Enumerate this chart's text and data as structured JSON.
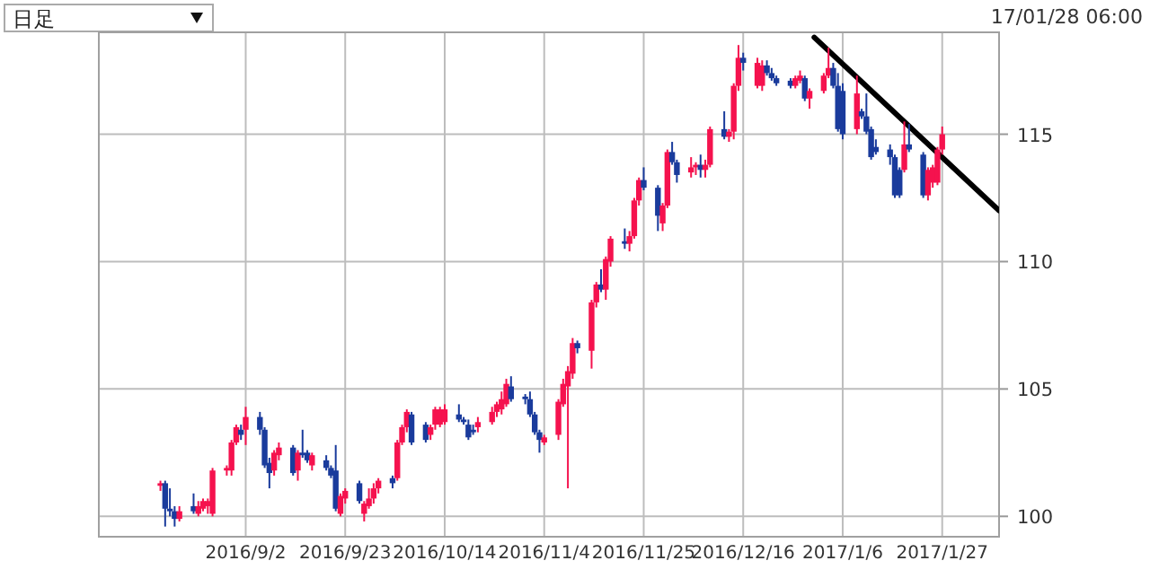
{
  "chart_data": {
    "type": "candlestick",
    "annotations": [
      "日足",
      "17/01/28 06:00"
    ],
    "x": [
      "2016-08-15",
      "2016-08-16",
      "2016-08-17",
      "2016-08-18",
      "2016-08-19",
      "2016-08-22",
      "2016-08-23",
      "2016-08-24",
      "2016-08-25",
      "2016-08-26",
      "2016-08-29",
      "2016-08-30",
      "2016-08-31",
      "2016-09-01",
      "2016-09-02",
      "2016-09-05",
      "2016-09-06",
      "2016-09-07",
      "2016-09-08",
      "2016-09-09",
      "2016-09-12",
      "2016-09-13",
      "2016-09-14",
      "2016-09-15",
      "2016-09-16",
      "2016-09-19",
      "2016-09-20",
      "2016-09-21",
      "2016-09-22",
      "2016-09-23",
      "2016-09-26",
      "2016-09-27",
      "2016-09-28",
      "2016-09-29",
      "2016-09-30",
      "2016-10-03",
      "2016-10-04",
      "2016-10-05",
      "2016-10-06",
      "2016-10-07",
      "2016-10-10",
      "2016-10-11",
      "2016-10-12",
      "2016-10-13",
      "2016-10-14",
      "2016-10-17",
      "2016-10-18",
      "2016-10-19",
      "2016-10-20",
      "2016-10-21",
      "2016-10-24",
      "2016-10-25",
      "2016-10-26",
      "2016-10-27",
      "2016-10-28",
      "2016-10-31",
      "2016-11-01",
      "2016-11-02",
      "2016-11-03",
      "2016-11-04",
      "2016-11-07",
      "2016-11-08",
      "2016-11-09",
      "2016-11-10",
      "2016-11-11",
      "2016-11-14",
      "2016-11-15",
      "2016-11-16",
      "2016-11-17",
      "2016-11-18",
      "2016-11-21",
      "2016-11-22",
      "2016-11-23",
      "2016-11-24",
      "2016-11-25",
      "2016-11-28",
      "2016-11-29",
      "2016-11-30",
      "2016-12-01",
      "2016-12-02",
      "2016-12-05",
      "2016-12-06",
      "2016-12-07",
      "2016-12-08",
      "2016-12-09",
      "2016-12-12",
      "2016-12-13",
      "2016-12-14",
      "2016-12-15",
      "2016-12-16",
      "2016-12-19",
      "2016-12-20",
      "2016-12-21",
      "2016-12-22",
      "2016-12-23",
      "2016-12-26",
      "2016-12-27",
      "2016-12-28",
      "2016-12-29",
      "2016-12-30",
      "2017-01-02",
      "2017-01-03",
      "2017-01-04",
      "2017-01-05",
      "2017-01-06",
      "2017-01-09",
      "2017-01-10",
      "2017-01-11",
      "2017-01-12",
      "2017-01-13",
      "2017-01-16",
      "2017-01-17",
      "2017-01-18",
      "2017-01-19",
      "2017-01-20",
      "2017-01-23",
      "2017-01-24",
      "2017-01-25",
      "2017-01-26",
      "2017-01-27"
    ],
    "ohlc": [
      [
        101.2,
        101.4,
        101.0,
        101.3
      ],
      [
        101.3,
        101.4,
        99.6,
        100.3
      ],
      [
        100.3,
        101.1,
        100.0,
        100.2
      ],
      [
        100.2,
        100.4,
        99.6,
        99.9
      ],
      [
        99.9,
        100.4,
        99.8,
        100.2
      ],
      [
        100.4,
        100.9,
        100.1,
        100.2
      ],
      [
        100.1,
        100.6,
        100.0,
        100.4
      ],
      [
        100.3,
        100.7,
        100.2,
        100.6
      ],
      [
        100.4,
        100.7,
        100.1,
        100.6
      ],
      [
        100.1,
        101.9,
        100.0,
        101.8
      ],
      [
        101.8,
        102.0,
        101.6,
        101.9
      ],
      [
        101.8,
        103.0,
        101.6,
        102.9
      ],
      [
        102.9,
        103.6,
        102.8,
        103.5
      ],
      [
        103.4,
        103.6,
        103.0,
        103.2
      ],
      [
        103.4,
        104.3,
        102.8,
        103.9
      ],
      [
        103.9,
        104.1,
        103.2,
        103.4
      ],
      [
        103.4,
        103.5,
        101.9,
        102.0
      ],
      [
        102.1,
        102.3,
        101.1,
        101.7
      ],
      [
        101.8,
        102.6,
        101.6,
        102.5
      ],
      [
        102.4,
        102.9,
        102.2,
        102.7
      ],
      [
        102.7,
        102.8,
        101.6,
        101.7
      ],
      [
        101.8,
        102.6,
        101.4,
        102.5
      ],
      [
        102.5,
        103.4,
        102.3,
        102.4
      ],
      [
        102.5,
        102.6,
        102.1,
        102.2
      ],
      [
        102.0,
        102.5,
        101.8,
        102.4
      ],
      [
        102.2,
        102.4,
        101.8,
        101.9
      ],
      [
        101.9,
        102.0,
        101.5,
        101.6
      ],
      [
        101.8,
        102.8,
        100.2,
        100.3
      ],
      [
        100.1,
        100.9,
        100.0,
        100.8
      ],
      [
        100.7,
        101.1,
        100.5,
        101.0
      ],
      [
        101.3,
        101.4,
        100.5,
        100.6
      ],
      [
        100.1,
        100.6,
        99.8,
        100.5
      ],
      [
        100.4,
        101.1,
        100.3,
        100.7
      ],
      [
        100.7,
        101.3,
        100.5,
        101.1
      ],
      [
        101.1,
        101.5,
        100.9,
        101.4
      ],
      [
        101.5,
        101.6,
        101.1,
        101.3
      ],
      [
        101.5,
        103.0,
        101.4,
        102.9
      ],
      [
        102.9,
        103.6,
        102.8,
        103.5
      ],
      [
        103.5,
        104.2,
        103.3,
        104.1
      ],
      [
        104.0,
        104.1,
        102.8,
        102.9
      ],
      [
        103.6,
        103.7,
        102.9,
        103.0
      ],
      [
        103.2,
        103.6,
        103.0,
        103.5
      ],
      [
        103.6,
        104.3,
        103.4,
        104.2
      ],
      [
        103.6,
        104.3,
        103.5,
        104.2
      ],
      [
        103.7,
        104.4,
        103.6,
        104.2
      ],
      [
        104.0,
        104.4,
        103.7,
        103.8
      ],
      [
        103.8,
        103.9,
        103.6,
        103.7
      ],
      [
        103.6,
        103.8,
        103.0,
        103.1
      ],
      [
        103.4,
        103.6,
        103.2,
        103.3
      ],
      [
        103.5,
        103.9,
        103.3,
        103.7
      ],
      [
        103.7,
        104.3,
        103.6,
        104.1
      ],
      [
        104.1,
        104.5,
        103.9,
        104.4
      ],
      [
        104.2,
        104.9,
        104.0,
        104.6
      ],
      [
        104.4,
        105.4,
        104.3,
        105.2
      ],
      [
        105.1,
        105.5,
        104.5,
        104.6
      ],
      [
        104.7,
        104.8,
        104.4,
        104.6
      ],
      [
        104.6,
        104.9,
        103.9,
        104.0
      ],
      [
        104.0,
        104.1,
        103.2,
        103.3
      ],
      [
        103.3,
        103.4,
        102.5,
        103.0
      ],
      [
        102.9,
        103.2,
        102.8,
        103.1
      ],
      [
        103.2,
        104.6,
        103.0,
        104.5
      ],
      [
        104.4,
        105.4,
        104.3,
        105.2
      ],
      [
        105.1,
        105.9,
        101.1,
        105.7
      ],
      [
        105.6,
        107.0,
        105.4,
        106.8
      ],
      [
        106.8,
        106.9,
        106.4,
        106.6
      ],
      [
        106.5,
        108.5,
        105.8,
        108.4
      ],
      [
        108.4,
        109.2,
        108.2,
        109.1
      ],
      [
        109.1,
        109.7,
        108.8,
        108.9
      ],
      [
        108.9,
        110.2,
        108.5,
        110.1
      ],
      [
        110.0,
        111.0,
        109.8,
        110.9
      ],
      [
        110.8,
        111.3,
        110.5,
        110.7
      ],
      [
        110.7,
        111.2,
        110.4,
        111.0
      ],
      [
        111.0,
        112.5,
        110.9,
        112.4
      ],
      [
        112.4,
        113.3,
        112.2,
        113.2
      ],
      [
        113.2,
        113.7,
        112.8,
        112.9
      ],
      [
        112.9,
        113.0,
        111.2,
        111.8
      ],
      [
        111.5,
        112.3,
        111.2,
        112.2
      ],
      [
        112.2,
        114.4,
        112.1,
        114.3
      ],
      [
        114.3,
        114.7,
        113.8,
        113.9
      ],
      [
        113.9,
        114.0,
        113.1,
        113.4
      ],
      [
        113.5,
        114.1,
        113.3,
        113.7
      ],
      [
        113.7,
        113.9,
        113.4,
        113.8
      ],
      [
        113.8,
        114.2,
        113.3,
        113.6
      ],
      [
        113.6,
        114.0,
        113.3,
        113.8
      ],
      [
        113.8,
        115.3,
        113.7,
        115.2
      ],
      [
        115.2,
        115.9,
        114.8,
        114.9
      ],
      [
        114.9,
        115.2,
        114.7,
        115.1
      ],
      [
        115.1,
        117.0,
        114.8,
        116.9
      ],
      [
        116.9,
        118.5,
        116.7,
        118.0
      ],
      [
        118.0,
        118.2,
        117.5,
        117.8
      ],
      [
        116.9,
        118.0,
        116.8,
        117.8
      ],
      [
        116.9,
        117.9,
        116.7,
        117.7
      ],
      [
        117.7,
        117.9,
        117.3,
        117.4
      ],
      [
        117.4,
        117.6,
        117.1,
        117.2
      ],
      [
        117.2,
        117.3,
        116.9,
        117.0
      ],
      [
        117.1,
        117.2,
        116.8,
        116.9
      ],
      [
        116.9,
        117.3,
        116.8,
        117.2
      ],
      [
        117.1,
        117.5,
        117.0,
        117.3
      ],
      [
        117.2,
        117.3,
        116.3,
        116.4
      ],
      [
        116.4,
        116.8,
        116.0,
        116.7
      ],
      [
        116.7,
        117.4,
        116.6,
        117.3
      ],
      [
        117.3,
        118.4,
        117.2,
        117.6
      ],
      [
        117.6,
        117.8,
        116.8,
        116.9
      ],
      [
        116.9,
        117.4,
        115.1,
        115.2
      ],
      [
        116.7,
        117.0,
        114.8,
        115.0
      ],
      [
        115.2,
        117.3,
        115.0,
        116.6
      ],
      [
        115.9,
        116.0,
        115.6,
        115.7
      ],
      [
        115.7,
        116.6,
        115.0,
        115.1
      ],
      [
        115.2,
        115.3,
        114.0,
        114.1
      ],
      [
        114.5,
        114.8,
        114.2,
        114.3
      ],
      [
        114.4,
        114.6,
        113.8,
        114.1
      ],
      [
        114.1,
        114.2,
        112.5,
        112.6
      ],
      [
        113.6,
        113.7,
        112.5,
        112.6
      ],
      [
        113.6,
        115.5,
        113.5,
        114.6
      ],
      [
        114.6,
        115.4,
        114.3,
        114.4
      ],
      [
        114.2,
        114.3,
        112.5,
        112.6
      ],
      [
        112.6,
        113.7,
        112.4,
        113.6
      ],
      [
        113.1,
        113.8,
        112.9,
        113.7
      ],
      [
        113.1,
        114.5,
        113.0,
        114.4
      ],
      [
        114.4,
        115.3,
        114.2,
        115.0
      ]
    ],
    "colors": [
      "#f5124e",
      "#1a3b9c",
      "#1a3b9c",
      "#1a3b9c",
      "#f5124e",
      "#1a3b9c",
      "#f5124e",
      "#f5124e",
      "#f5124e",
      "#f5124e",
      "#f5124e",
      "#f5124e",
      "#f5124e",
      "#1a3b9c",
      "#f5124e",
      "#1a3b9c",
      "#1a3b9c",
      "#1a3b9c",
      "#f5124e",
      "#f5124e",
      "#1a3b9c",
      "#f5124e",
      "#1a3b9c",
      "#1a3b9c",
      "#f5124e",
      "#1a3b9c",
      "#1a3b9c",
      "#1a3b9c",
      "#f5124e",
      "#f5124e",
      "#1a3b9c",
      "#f5124e",
      "#f5124e",
      "#f5124e",
      "#f5124e",
      "#1a3b9c",
      "#f5124e",
      "#f5124e",
      "#f5124e",
      "#1a3b9c",
      "#1a3b9c",
      "#f5124e",
      "#f5124e",
      "#f5124e",
      "#f5124e",
      "#1a3b9c",
      "#1a3b9c",
      "#1a3b9c",
      "#1a3b9c",
      "#f5124e",
      "#f5124e",
      "#f5124e",
      "#f5124e",
      "#f5124e",
      "#1a3b9c",
      "#1a3b9c",
      "#1a3b9c",
      "#1a3b9c",
      "#1a3b9c",
      "#f5124e",
      "#f5124e",
      "#f5124e",
      "#f5124e",
      "#f5124e",
      "#1a3b9c",
      "#f5124e",
      "#f5124e",
      "#1a3b9c",
      "#f5124e",
      "#f5124e",
      "#1a3b9c",
      "#f5124e",
      "#f5124e",
      "#f5124e",
      "#1a3b9c",
      "#1a3b9c",
      "#f5124e",
      "#f5124e",
      "#1a3b9c",
      "#1a3b9c",
      "#f5124e",
      "#f5124e",
      "#1a3b9c",
      "#f5124e",
      "#f5124e",
      "#1a3b9c",
      "#f5124e",
      "#f5124e",
      "#f5124e",
      "#1a3b9c",
      "#f5124e",
      "#f5124e",
      "#1a3b9c",
      "#1a3b9c",
      "#1a3b9c",
      "#1a3b9c",
      "#f5124e",
      "#f5124e",
      "#1a3b9c",
      "#f5124e",
      "#f5124e",
      "#f5124e",
      "#1a3b9c",
      "#1a3b9c",
      "#1a3b9c",
      "#f5124e",
      "#1a3b9c",
      "#1a3b9c",
      "#1a3b9c",
      "#1a3b9c",
      "#1a3b9c",
      "#1a3b9c",
      "#1a3b9c",
      "#f5124e",
      "#1a3b9c",
      "#1a3b9c",
      "#f5124e",
      "#f5124e",
      "#f5124e",
      "#f5124e"
    ],
    "series": [
      {
        "type": "line",
        "x": [
          "2016-12-31",
          "2017-02-08"
        ],
        "values": [
          118.8,
          112.0
        ],
        "color": "#000000"
      }
    ],
    "xlim": [
      "2016-08-02",
      "2017-02-08"
    ],
    "xticks": [
      {
        "value": "2016-09-02",
        "label": "2016/9/2"
      },
      {
        "value": "2016-09-23",
        "label": "2016/9/23"
      },
      {
        "value": "2016-10-14",
        "label": "2016/10/14"
      },
      {
        "value": "2016-11-04",
        "label": "2016/11/4"
      },
      {
        "value": "2016-11-25",
        "label": "2016/11/25"
      },
      {
        "value": "2016-12-16",
        "label": "2016/12/16"
      },
      {
        "value": "2017-01-06",
        "label": "2017/1/6"
      },
      {
        "value": "2017-01-27",
        "label": "2017/1/27"
      }
    ],
    "ylim": [
      99.2,
      119
    ],
    "yticks": [
      100,
      105,
      110,
      115
    ],
    "grid": true
  }
}
